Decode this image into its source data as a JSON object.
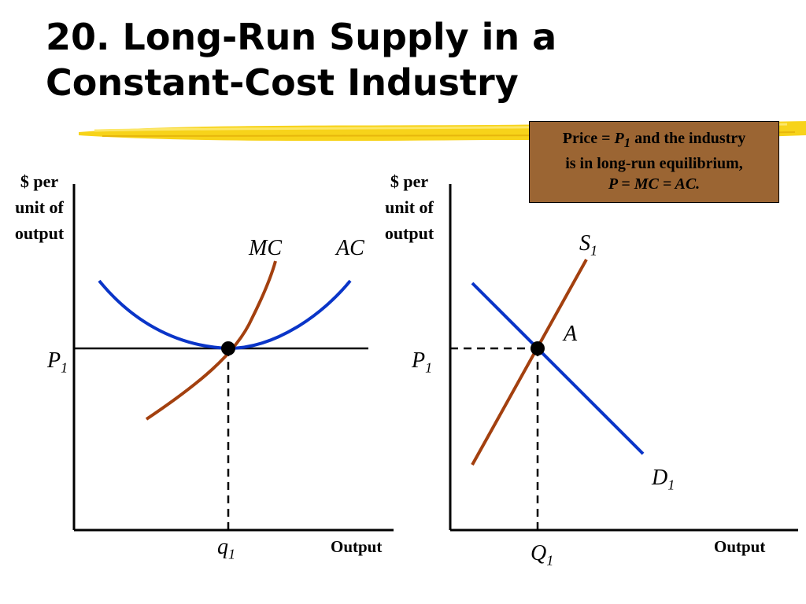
{
  "slide": {
    "title_line1": "20. Long-Run Supply in a",
    "title_line2": "Constant-Cost Industry"
  },
  "callout": {
    "line1_prefix": "Price = ",
    "line1_price": "P",
    "line1_sub": "1",
    "line1_suffix": " and the industry",
    "line2": "is in long-run equilibrium,",
    "line3": "P = MC = AC."
  },
  "firm_graph": {
    "ylabel": [
      "$ per",
      "unit of",
      "output"
    ],
    "xlabel": "Output",
    "mc_label": "MC",
    "ac_label": "AC",
    "price_label": "P",
    "price_sub": "1",
    "quantity_label": "q",
    "quantity_sub": "1"
  },
  "industry_graph": {
    "ylabel": [
      "$ per",
      "unit of",
      "output"
    ],
    "xlabel": "Output",
    "supply_label": "S",
    "supply_sub": "1",
    "demand_label": "D",
    "demand_sub": "1",
    "point_label": "A",
    "price_label": "P",
    "price_sub": "1",
    "quantity_label": "Q",
    "quantity_sub": "1"
  },
  "colors": {
    "cost_curve_blue": "#0a35c8",
    "cost_curve_brown": "#a3400f",
    "callout_fill": "#9b6533",
    "highlight_yellow": "#f7d31a"
  }
}
